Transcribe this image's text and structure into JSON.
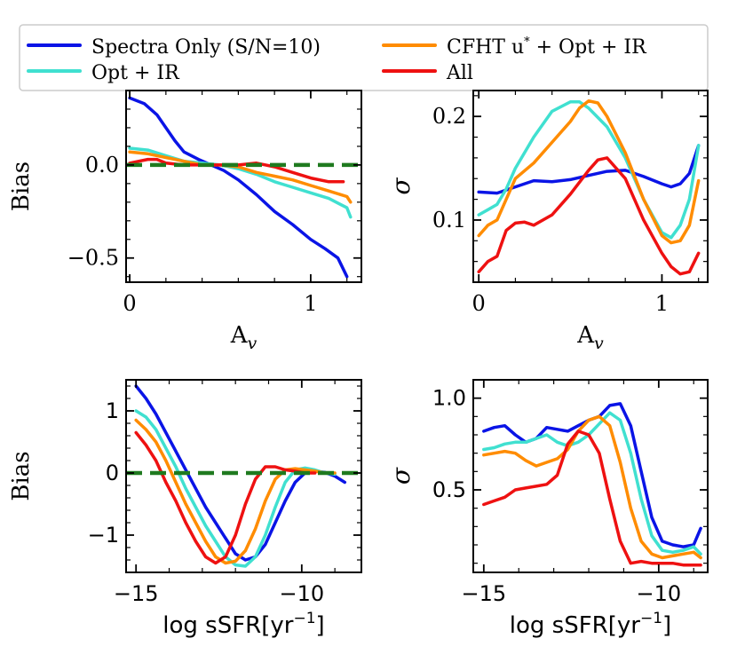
{
  "legend": {
    "entries": [
      {
        "label": "Spectra Only (S/N=10)",
        "color": "#0a14e6",
        "series": "spectra"
      },
      {
        "label": "Opt + IR",
        "color": "#40e0d0",
        "series": "optir"
      },
      {
        "label": "CFHT u* + Opt + IR",
        "color": "#ff8c00",
        "series": "cfht"
      },
      {
        "label": "All",
        "color": "#ee1111",
        "series": "all"
      }
    ],
    "cfht_main": "CFHT u",
    "cfht_star": "*",
    "cfht_rest": " + Opt + IR",
    "reference_line_color": "#1f7a1f"
  },
  "chart_data": [
    {
      "id": "av_bias",
      "type": "line",
      "xlabel": "A",
      "xlabel_sub": "v",
      "ylabel": "Bias",
      "xlim": [
        -0.02,
        1.28
      ],
      "ylim": [
        -0.63,
        0.4
      ],
      "xticks": [
        0,
        1
      ],
      "xtick_labels": [
        "0",
        "1"
      ],
      "yticks": [
        -0.5,
        0.0
      ],
      "ytick_labels": [
        "−0.5",
        "0.0"
      ],
      "reference_line": 0,
      "series": [
        {
          "name": "spectra",
          "x": [
            0,
            0.08,
            0.15,
            0.2,
            0.25,
            0.3,
            0.38,
            0.45,
            0.52,
            0.6,
            0.7,
            0.8,
            0.9,
            1.0,
            1.08,
            1.15,
            1.2
          ],
          "y": [
            0.36,
            0.33,
            0.27,
            0.2,
            0.13,
            0.07,
            0.03,
            0.0,
            -0.03,
            -0.08,
            -0.16,
            -0.25,
            -0.32,
            -0.4,
            -0.45,
            -0.5,
            -0.6
          ]
        },
        {
          "name": "optir",
          "x": [
            0,
            0.1,
            0.2,
            0.3,
            0.4,
            0.5,
            0.6,
            0.7,
            0.8,
            0.9,
            1.0,
            1.1,
            1.2,
            1.22
          ],
          "y": [
            0.09,
            0.08,
            0.05,
            0.02,
            0.01,
            0.0,
            -0.02,
            -0.05,
            -0.09,
            -0.12,
            -0.15,
            -0.18,
            -0.23,
            -0.28
          ]
        },
        {
          "name": "cfht",
          "x": [
            0,
            0.1,
            0.2,
            0.3,
            0.4,
            0.5,
            0.6,
            0.7,
            0.8,
            0.9,
            1.0,
            1.1,
            1.2,
            1.22
          ],
          "y": [
            0.07,
            0.06,
            0.04,
            0.02,
            0.0,
            0.0,
            -0.01,
            -0.04,
            -0.06,
            -0.08,
            -0.11,
            -0.14,
            -0.17,
            -0.2
          ]
        },
        {
          "name": "all",
          "x": [
            0,
            0.05,
            0.1,
            0.15,
            0.2,
            0.3,
            0.4,
            0.5,
            0.6,
            0.7,
            0.8,
            0.9,
            1.0,
            1.1,
            1.18
          ],
          "y": [
            0.01,
            0.02,
            0.03,
            0.03,
            0.01,
            0.0,
            0.0,
            0.0,
            0.0,
            0.01,
            -0.01,
            -0.04,
            -0.07,
            -0.09,
            -0.09
          ]
        }
      ]
    },
    {
      "id": "av_sigma",
      "type": "line",
      "xlabel": "A",
      "xlabel_sub": "v",
      "ylabel": "σ",
      "xlim": [
        -0.03,
        1.25
      ],
      "ylim": [
        0.04,
        0.225
      ],
      "xticks": [
        0,
        1
      ],
      "xtick_labels": [
        "0",
        "1"
      ],
      "yticks": [
        0.1,
        0.2
      ],
      "ytick_labels": [
        "0.1",
        "0.2"
      ],
      "series": [
        {
          "name": "spectra",
          "x": [
            0,
            0.1,
            0.2,
            0.3,
            0.4,
            0.5,
            0.6,
            0.7,
            0.8,
            0.9,
            1.0,
            1.05,
            1.1,
            1.15,
            1.2
          ],
          "y": [
            0.127,
            0.126,
            0.132,
            0.138,
            0.137,
            0.139,
            0.143,
            0.147,
            0.148,
            0.142,
            0.135,
            0.132,
            0.135,
            0.145,
            0.172
          ]
        },
        {
          "name": "optir",
          "x": [
            0,
            0.05,
            0.1,
            0.15,
            0.2,
            0.3,
            0.4,
            0.5,
            0.55,
            0.6,
            0.7,
            0.8,
            0.9,
            1.0,
            1.05,
            1.1,
            1.15,
            1.2
          ],
          "y": [
            0.105,
            0.11,
            0.115,
            0.13,
            0.15,
            0.18,
            0.205,
            0.214,
            0.214,
            0.208,
            0.19,
            0.16,
            0.12,
            0.088,
            0.083,
            0.095,
            0.12,
            0.172
          ]
        },
        {
          "name": "cfht",
          "x": [
            0,
            0.05,
            0.1,
            0.15,
            0.2,
            0.3,
            0.4,
            0.5,
            0.55,
            0.6,
            0.65,
            0.7,
            0.8,
            0.9,
            1.0,
            1.05,
            1.1,
            1.15,
            1.2
          ],
          "y": [
            0.085,
            0.095,
            0.1,
            0.12,
            0.14,
            0.155,
            0.175,
            0.195,
            0.208,
            0.215,
            0.213,
            0.2,
            0.165,
            0.12,
            0.085,
            0.078,
            0.08,
            0.095,
            0.138
          ]
        },
        {
          "name": "all",
          "x": [
            0,
            0.05,
            0.1,
            0.15,
            0.2,
            0.25,
            0.3,
            0.4,
            0.5,
            0.6,
            0.65,
            0.7,
            0.8,
            0.9,
            1.0,
            1.05,
            1.1,
            1.15,
            1.2
          ],
          "y": [
            0.05,
            0.06,
            0.065,
            0.09,
            0.097,
            0.098,
            0.095,
            0.105,
            0.125,
            0.148,
            0.158,
            0.16,
            0.14,
            0.1,
            0.068,
            0.055,
            0.048,
            0.05,
            0.068
          ]
        }
      ]
    },
    {
      "id": "ssfr_bias",
      "type": "line",
      "xlabel": "log sSFR[yr",
      "xlabel_sup": "−1",
      "xlabel_end": "]",
      "ylabel": "Bias",
      "xlim": [
        -15.3,
        -8.2
      ],
      "ylim": [
        -1.6,
        1.5
      ],
      "xticks": [
        -15,
        -10
      ],
      "xtick_labels": [
        "−15",
        "−10"
      ],
      "yticks": [
        -1,
        0,
        1
      ],
      "ytick_labels": [
        "−1",
        "0",
        "1"
      ],
      "reference_line": 0,
      "series": [
        {
          "name": "spectra",
          "x": [
            -15,
            -14.7,
            -14.4,
            -14.1,
            -13.8,
            -13.5,
            -13.2,
            -12.9,
            -12.6,
            -12.3,
            -12.0,
            -11.7,
            -11.4,
            -11.1,
            -10.8,
            -10.5,
            -10.2,
            -9.9,
            -9.6,
            -9.3,
            -9.0,
            -8.7
          ],
          "y": [
            1.4,
            1.2,
            0.95,
            0.65,
            0.35,
            0.05,
            -0.25,
            -0.55,
            -0.8,
            -1.05,
            -1.3,
            -1.4,
            -1.35,
            -1.15,
            -0.8,
            -0.45,
            -0.15,
            0.0,
            0.03,
            0.01,
            -0.05,
            -0.15
          ]
        },
        {
          "name": "optir",
          "x": [
            -15,
            -14.7,
            -14.4,
            -14.1,
            -13.8,
            -13.5,
            -13.2,
            -12.9,
            -12.6,
            -12.3,
            -12.0,
            -11.7,
            -11.4,
            -11.1,
            -10.8,
            -10.5,
            -10.2,
            -9.9,
            -9.6,
            -9.3,
            -9.0
          ],
          "y": [
            1.0,
            0.9,
            0.7,
            0.4,
            0.1,
            -0.25,
            -0.55,
            -0.85,
            -1.1,
            -1.35,
            -1.48,
            -1.5,
            -1.35,
            -1.0,
            -0.55,
            -0.15,
            0.05,
            0.08,
            0.05,
            0.0,
            -0.02
          ]
        },
        {
          "name": "cfht",
          "x": [
            -15,
            -14.7,
            -14.4,
            -14.1,
            -13.8,
            -13.5,
            -13.2,
            -12.9,
            -12.6,
            -12.3,
            -12.0,
            -11.7,
            -11.4,
            -11.1,
            -10.8,
            -10.5,
            -10.2,
            -9.9,
            -9.6,
            -9.3,
            -9.0
          ],
          "y": [
            0.85,
            0.7,
            0.5,
            0.2,
            -0.15,
            -0.5,
            -0.8,
            -1.1,
            -1.35,
            -1.45,
            -1.42,
            -1.25,
            -0.9,
            -0.45,
            -0.1,
            0.05,
            0.07,
            0.05,
            0.03,
            0.0,
            0.0
          ]
        },
        {
          "name": "all",
          "x": [
            -15,
            -14.7,
            -14.4,
            -14.1,
            -13.8,
            -13.5,
            -13.2,
            -12.9,
            -12.6,
            -12.3,
            -12.0,
            -11.7,
            -11.4,
            -11.1,
            -10.8,
            -10.5,
            -10.2,
            -9.9,
            -9.6
          ],
          "y": [
            0.65,
            0.45,
            0.2,
            -0.15,
            -0.45,
            -0.8,
            -1.1,
            -1.35,
            -1.45,
            -1.35,
            -1.0,
            -0.5,
            -0.1,
            0.1,
            0.1,
            0.05,
            0.03,
            0.0,
            0.0
          ]
        }
      ]
    },
    {
      "id": "ssfr_sigma",
      "type": "line",
      "xlabel": "log sSFR[yr",
      "xlabel_sup": "−1",
      "xlabel_end": "]",
      "ylabel": "σ",
      "xlim": [
        -15.3,
        -8.6
      ],
      "ylim": [
        0.05,
        1.1
      ],
      "xticks": [
        -15,
        -10
      ],
      "xtick_labels": [
        "−15",
        "−10"
      ],
      "yticks": [
        0.5,
        1.0
      ],
      "ytick_labels": [
        "0.5",
        "1.0"
      ],
      "series": [
        {
          "name": "spectra",
          "x": [
            -15,
            -14.7,
            -14.4,
            -14.1,
            -13.8,
            -13.5,
            -13.2,
            -12.9,
            -12.6,
            -12.3,
            -12.0,
            -11.7,
            -11.4,
            -11.1,
            -10.8,
            -10.5,
            -10.2,
            -9.9,
            -9.6,
            -9.3,
            -9.0,
            -8.8
          ],
          "y": [
            0.82,
            0.84,
            0.85,
            0.8,
            0.76,
            0.78,
            0.84,
            0.83,
            0.82,
            0.85,
            0.88,
            0.9,
            0.96,
            0.97,
            0.85,
            0.6,
            0.35,
            0.22,
            0.2,
            0.19,
            0.2,
            0.29
          ]
        },
        {
          "name": "optir",
          "x": [
            -15,
            -14.7,
            -14.4,
            -14.1,
            -13.8,
            -13.5,
            -13.2,
            -12.9,
            -12.6,
            -12.3,
            -12.0,
            -11.7,
            -11.4,
            -11.1,
            -10.8,
            -10.5,
            -10.2,
            -9.9,
            -9.6,
            -9.3,
            -9.0,
            -8.8
          ],
          "y": [
            0.72,
            0.73,
            0.75,
            0.76,
            0.76,
            0.78,
            0.8,
            0.76,
            0.74,
            0.76,
            0.8,
            0.86,
            0.92,
            0.88,
            0.7,
            0.45,
            0.25,
            0.17,
            0.16,
            0.17,
            0.19,
            0.15
          ]
        },
        {
          "name": "cfht",
          "x": [
            -15,
            -14.7,
            -14.4,
            -14.1,
            -13.8,
            -13.5,
            -13.2,
            -12.9,
            -12.6,
            -12.3,
            -12.0,
            -11.7,
            -11.4,
            -11.1,
            -10.8,
            -10.5,
            -10.2,
            -9.9,
            -9.6,
            -9.3,
            -9.0,
            -8.8
          ],
          "y": [
            0.69,
            0.7,
            0.71,
            0.7,
            0.66,
            0.63,
            0.65,
            0.67,
            0.72,
            0.82,
            0.88,
            0.9,
            0.85,
            0.65,
            0.4,
            0.22,
            0.15,
            0.13,
            0.14,
            0.15,
            0.16,
            0.13
          ]
        },
        {
          "name": "all",
          "x": [
            -15,
            -14.7,
            -14.4,
            -14.1,
            -13.8,
            -13.5,
            -13.2,
            -12.9,
            -12.6,
            -12.3,
            -12.0,
            -11.7,
            -11.4,
            -11.1,
            -10.8,
            -10.5,
            -10.2,
            -9.9,
            -9.6,
            -9.3,
            -9.0,
            -8.8
          ],
          "y": [
            0.42,
            0.44,
            0.46,
            0.5,
            0.51,
            0.52,
            0.53,
            0.58,
            0.75,
            0.82,
            0.8,
            0.7,
            0.45,
            0.22,
            0.1,
            0.11,
            0.1,
            0.1,
            0.1,
            0.09,
            0.09,
            0.09
          ]
        }
      ]
    }
  ]
}
